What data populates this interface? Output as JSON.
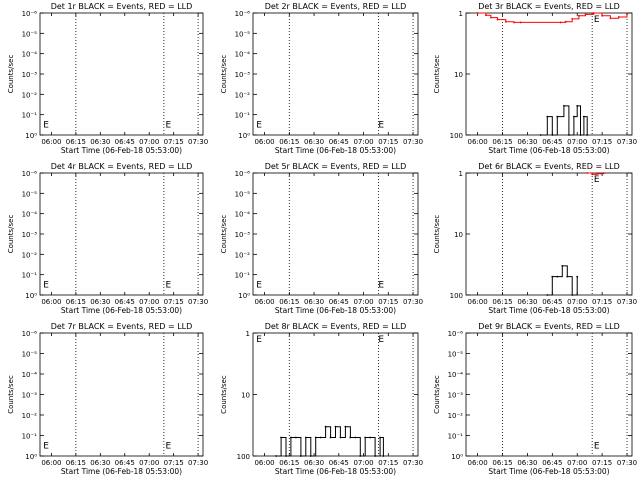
{
  "page": {
    "background": "#ffffff",
    "events_color": "#000000",
    "lld_color": "#ff0000"
  },
  "chart_data": [
    {
      "type": "line",
      "title": "Det 1r BLACK = Events, RED = LLD",
      "ylabel": "Counts/sec",
      "xlabel": "Start Time (06-Feb-18 05:53:00)",
      "x_ticks": [
        "06:00",
        "06:15",
        "06:30",
        "06:45",
        "07:00",
        "07:15",
        "07:30"
      ],
      "x_range": [
        "05:53",
        "07:33"
      ],
      "yscale": "log",
      "y_ticks": [
        "10⁰",
        "10⁻¹",
        "10⁻²",
        "10⁻³",
        "10⁻⁴",
        "10⁻⁵",
        "10⁻⁶"
      ],
      "ylim": [
        1,
        1e-06
      ],
      "dotted_lines_at": [
        "06:15",
        "07:09",
        "07:30"
      ],
      "markers": [
        {
          "x": "05:55",
          "y": 0.3,
          "label": "E"
        },
        {
          "x": "07:10",
          "y": 0.3,
          "label": "E"
        }
      ],
      "series": []
    },
    {
      "type": "line",
      "title": "Det 2r BLACK = Events, RED = LLD",
      "ylabel": "Counts/sec",
      "xlabel": "Start Time (06-Feb-18 05:53:00)",
      "x_ticks": [
        "06:00",
        "06:15",
        "06:30",
        "06:45",
        "07:00",
        "07:15",
        "07:30"
      ],
      "x_range": [
        "05:53",
        "07:33"
      ],
      "yscale": "log",
      "y_ticks": [
        "10⁰",
        "10⁻¹",
        "10⁻²",
        "10⁻³",
        "10⁻⁴",
        "10⁻⁵",
        "10⁻⁶"
      ],
      "ylim": [
        1,
        1e-06
      ],
      "dotted_lines_at": [
        "06:15",
        "07:09",
        "07:30"
      ],
      "markers": [
        {
          "x": "05:55",
          "y": 0.3,
          "label": "E"
        },
        {
          "x": "07:09",
          "y": 0.3,
          "label": "E"
        }
      ],
      "series": []
    },
    {
      "type": "line",
      "title": "Det 3r BLACK = Events, RED = LLD",
      "ylabel": "Counts/sec",
      "xlabel": "Start Time (06-Feb-18 05:53:00)",
      "x_ticks": [
        "06:00",
        "06:15",
        "06:30",
        "06:45",
        "07:00",
        "07:15",
        "07:30"
      ],
      "x_range": [
        "05:53",
        "07:33"
      ],
      "yscale": "log",
      "y_ticks": [
        "100",
        "10",
        "1"
      ],
      "ylim": [
        1,
        100
      ],
      "dotted_lines_at": [
        "06:15",
        "07:09",
        "07:30"
      ],
      "markers": [
        {
          "x": "07:10",
          "y": 88,
          "label": "E"
        }
      ],
      "series": [
        {
          "color": "#ff0000",
          "x": [
            "06:00",
            "06:05",
            "06:08",
            "06:12",
            "06:17",
            "06:22",
            "06:26",
            "06:50",
            "06:53",
            "06:57",
            "07:01",
            "07:05",
            "07:10",
            "07:15",
            "07:20",
            "07:25",
            "07:30"
          ],
          "values": [
            100,
            92,
            84,
            78,
            72,
            70,
            70,
            70,
            72,
            80,
            90,
            95,
            100,
            90,
            82,
            86,
            96
          ]
        },
        {
          "color": "#000000",
          "x": [
            "06:38",
            "06:42",
            "06:45",
            "06:48",
            "06:52",
            "06:55",
            "06:58",
            "07:00",
            "07:02",
            "07:04",
            "07:06"
          ],
          "values": [
            1,
            2,
            1,
            2,
            3,
            1,
            2,
            3,
            1,
            2,
            1
          ]
        }
      ]
    },
    {
      "type": "line",
      "title": "Det 4r BLACK = Events, RED = LLD",
      "ylabel": "Counts/sec",
      "xlabel": "Start Time (06-Feb-18 05:53:00)",
      "x_ticks": [
        "06:00",
        "06:15",
        "06:30",
        "06:45",
        "07:00",
        "07:15",
        "07:30"
      ],
      "x_range": [
        "05:53",
        "07:33"
      ],
      "yscale": "log",
      "y_ticks": [
        "10⁰",
        "10⁻¹",
        "10⁻²",
        "10⁻³",
        "10⁻⁴",
        "10⁻⁵",
        "10⁻⁶"
      ],
      "ylim": [
        1,
        1e-06
      ],
      "dotted_lines_at": [
        "06:15",
        "07:09",
        "07:30"
      ],
      "markers": [
        {
          "x": "05:55",
          "y": 0.3,
          "label": "E"
        },
        {
          "x": "07:10",
          "y": 0.3,
          "label": "E"
        }
      ],
      "series": []
    },
    {
      "type": "line",
      "title": "Det 5r BLACK = Events, RED = LLD",
      "ylabel": "Counts/sec",
      "xlabel": "Start Time (06-Feb-18 05:53:00)",
      "x_ticks": [
        "06:00",
        "06:15",
        "06:30",
        "06:45",
        "07:00",
        "07:15",
        "07:30"
      ],
      "x_range": [
        "05:53",
        "07:33"
      ],
      "yscale": "log",
      "y_ticks": [
        "10⁰",
        "10⁻¹",
        "10⁻²",
        "10⁻³",
        "10⁻⁴",
        "10⁻⁵",
        "10⁻⁶"
      ],
      "ylim": [
        1,
        1e-06
      ],
      "dotted_lines_at": [
        "06:15",
        "07:09",
        "07:30"
      ],
      "markers": [
        {
          "x": "05:55",
          "y": 0.3,
          "label": "E"
        },
        {
          "x": "07:09",
          "y": 0.3,
          "label": "E"
        }
      ],
      "series": []
    },
    {
      "type": "line",
      "title": "Det 6r BLACK = Events, RED = LLD",
      "ylabel": "Counts/sec",
      "xlabel": "Start Time (06-Feb-18 05:53:00)",
      "x_ticks": [
        "06:00",
        "06:15",
        "06:30",
        "06:45",
        "07:00",
        "07:15",
        "07:30"
      ],
      "x_range": [
        "05:53",
        "07:33"
      ],
      "yscale": "log",
      "y_ticks": [
        "100",
        "10",
        "1"
      ],
      "ylim": [
        1,
        100
      ],
      "dotted_lines_at": [
        "06:15",
        "07:09",
        "07:30"
      ],
      "markers": [
        {
          "x": "07:10",
          "y": 88,
          "label": "E"
        }
      ],
      "series": [
        {
          "color": "#ff0000",
          "x": [
            "07:06",
            "07:09",
            "07:12",
            "07:16"
          ],
          "values": [
            100,
            95,
            97,
            100
          ]
        },
        {
          "color": "#000000",
          "x": [
            "06:42",
            "06:45",
            "06:48",
            "06:51",
            "06:54",
            "06:57",
            "07:00"
          ],
          "values": [
            1,
            2,
            2,
            3,
            2,
            1,
            2
          ]
        }
      ]
    },
    {
      "type": "line",
      "title": "Det 7r BLACK = Events, RED = LLD",
      "ylabel": "Counts/sec",
      "xlabel": "Start Time (06-Feb-18 05:53:00)",
      "x_ticks": [
        "06:00",
        "06:15",
        "06:30",
        "06:45",
        "07:00",
        "07:15",
        "07:30"
      ],
      "x_range": [
        "05:53",
        "07:33"
      ],
      "yscale": "log",
      "y_ticks": [
        "10⁰",
        "10⁻¹",
        "10⁻²",
        "10⁻³",
        "10⁻⁴",
        "10⁻⁵",
        "10⁻⁶"
      ],
      "ylim": [
        1,
        1e-06
      ],
      "dotted_lines_at": [
        "06:15",
        "07:09",
        "07:30"
      ],
      "markers": [
        {
          "x": "05:55",
          "y": 0.3,
          "label": "E"
        },
        {
          "x": "07:10",
          "y": 0.3,
          "label": "E"
        }
      ],
      "series": []
    },
    {
      "type": "line",
      "title": "Det 8r BLACK = Events, RED = LLD",
      "ylabel": "Counts/sec",
      "xlabel": "Start Time (06-Feb-18 05:53:00)",
      "x_ticks": [
        "06:00",
        "06:15",
        "06:30",
        "06:45",
        "07:00",
        "07:15",
        "07:30"
      ],
      "x_range": [
        "05:53",
        "07:33"
      ],
      "yscale": "log",
      "y_ticks": [
        "100",
        "10",
        "1"
      ],
      "ylim": [
        1,
        100
      ],
      "dotted_lines_at": [
        "06:15",
        "07:09",
        "07:30"
      ],
      "markers": [
        {
          "x": "05:55",
          "y": 88,
          "label": "E"
        },
        {
          "x": "07:09",
          "y": 88,
          "label": "E"
        }
      ],
      "series": [
        {
          "color": "#000000",
          "x": [
            "06:07",
            "06:10",
            "06:13",
            "06:16",
            "06:19",
            "06:22",
            "06:25",
            "06:28",
            "06:31",
            "06:34",
            "06:37",
            "06:40",
            "06:43",
            "06:46",
            "06:49",
            "06:52",
            "06:55",
            "06:58",
            "07:01",
            "07:04",
            "07:07",
            "07:10",
            "07:12"
          ],
          "values": [
            1,
            2,
            1,
            2,
            2,
            1,
            2,
            1,
            2,
            2,
            3,
            2,
            3,
            2,
            3,
            2,
            2,
            1,
            2,
            2,
            1,
            2,
            1
          ]
        }
      ]
    },
    {
      "type": "line",
      "title": "Det 9r BLACK = Events, RED = LLD",
      "ylabel": "Counts/sec",
      "xlabel": "Start Time (06-Feb-18 05:53:00)",
      "x_ticks": [
        "06:00",
        "06:15",
        "06:30",
        "06:45",
        "07:00",
        "07:15",
        "07:30"
      ],
      "x_range": [
        "05:53",
        "07:33"
      ],
      "yscale": "log",
      "y_ticks": [
        "10⁰",
        "10⁻¹",
        "10⁻²",
        "10⁻³",
        "10⁻⁴",
        "10⁻⁵",
        "10⁻⁶"
      ],
      "ylim": [
        1,
        1e-06
      ],
      "dotted_lines_at": [
        "06:15",
        "07:09",
        "07:30"
      ],
      "markers": [
        {
          "x": "07:10",
          "y": 0.3,
          "label": "E"
        }
      ],
      "series": []
    }
  ]
}
